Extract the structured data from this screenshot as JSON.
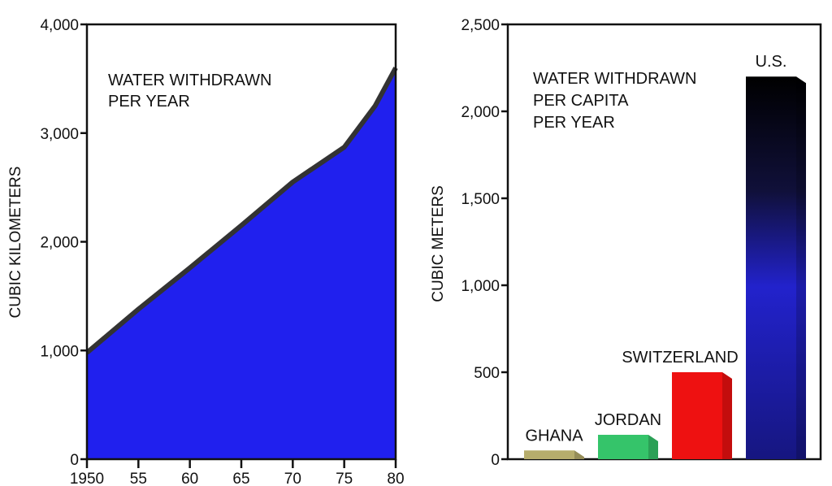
{
  "colors": {
    "area_fill": "#2020ee",
    "area_edge": "#333333"
  },
  "chart_data": [
    {
      "type": "area",
      "x_tick_labels": [
        "1950",
        "55",
        "60",
        "65",
        "70",
        "75",
        "80"
      ],
      "y_tick_labels": [
        "0",
        "1,000",
        "2,000",
        "3,000",
        "4,000"
      ],
      "ylabel": "CUBIC KILOMETERS",
      "annotation": [
        "WATER WITHDRAWN",
        "PER YEAR"
      ],
      "xlim": [
        1950,
        1980
      ],
      "ylim": [
        0,
        4000
      ],
      "x": [
        1950,
        1955,
        1960,
        1965,
        1970,
        1975,
        1978,
        1980
      ],
      "values": [
        980,
        1380,
        1760,
        2150,
        2550,
        2870,
        3250,
        3600
      ],
      "grid": false
    },
    {
      "type": "bar",
      "categories": [
        "GHANA",
        "JORDAN",
        "SWITZERLAND",
        "U.S."
      ],
      "values": [
        50,
        140,
        500,
        2200
      ],
      "colors": [
        "#b6ad6c",
        "#35c46a",
        "#ee1111",
        "#1818c8"
      ],
      "y_tick_labels": [
        "0",
        "500",
        "1,000",
        "1,500",
        "2,000",
        "2,500"
      ],
      "ylabel": "CUBIC METERS",
      "annotation": [
        "WATER WITHDRAWN",
        "PER CAPITA",
        "PER YEAR"
      ],
      "ylim": [
        0,
        2500
      ],
      "grid": false
    }
  ]
}
